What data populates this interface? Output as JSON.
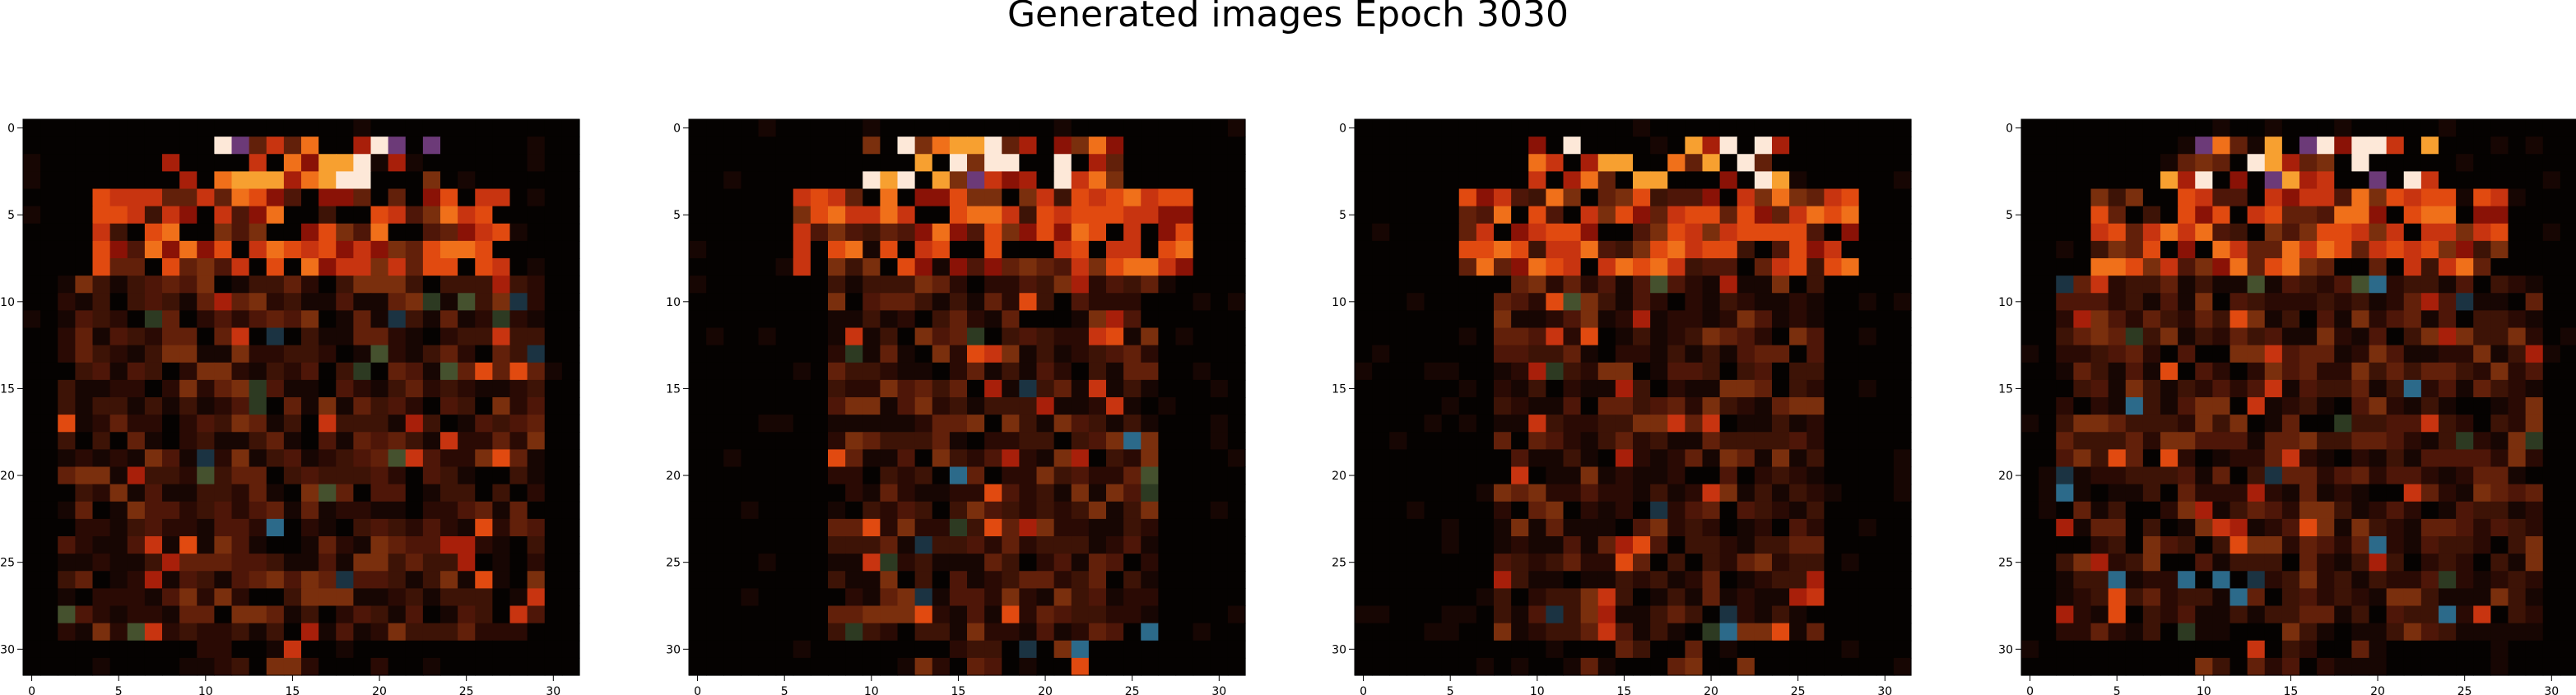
{
  "figure": {
    "title": "Generated images Epoch 3030"
  },
  "chart_data": [
    {
      "type": "heatmap",
      "title": "",
      "xlabel": "",
      "ylabel": "",
      "xlim": [
        -0.5,
        31.5
      ],
      "ylim": [
        31.5,
        -0.5
      ],
      "xticks": [
        0,
        5,
        10,
        15,
        20,
        25,
        30
      ],
      "yticks": [
        0,
        5,
        10,
        15,
        20,
        25,
        30
      ],
      "grid": false,
      "colors": {
        "background": "#050201",
        "palette": [
          "#050201",
          "#170603",
          "#2a0a04",
          "#3d1306",
          "#4e1608",
          "#62200a",
          "#7a2f0d",
          "#8a1206",
          "#a81f0a",
          "#c83410",
          "#e14a10",
          "#f0701a",
          "#f7a030",
          "#fde8d8",
          "#2d3a22",
          "#45512e",
          "#1b3342",
          "#2c6a8a",
          "#27407e",
          "#5f6fae",
          "#6c3a78",
          "#a9c8d8"
        ]
      },
      "pixels_note": ""
    },
    {
      "type": "heatmap",
      "title": "",
      "xlabel": "",
      "ylabel": "",
      "xlim": [
        -0.5,
        31.5
      ],
      "ylim": [
        31.5,
        -0.5
      ],
      "xticks": [
        0,
        5,
        10,
        15,
        20,
        25,
        30
      ],
      "yticks": [
        0,
        5,
        10,
        15,
        20,
        25,
        30
      ],
      "grid": false
    },
    {
      "type": "heatmap",
      "title": "",
      "xlabel": "",
      "ylabel": "",
      "xlim": [
        -0.5,
        31.5
      ],
      "ylim": [
        31.5,
        -0.5
      ],
      "xticks": [
        0,
        5,
        10,
        15,
        20,
        25,
        30
      ],
      "yticks": [
        0,
        5,
        10,
        15,
        20,
        25,
        30
      ],
      "grid": false
    },
    {
      "type": "heatmap",
      "title": "",
      "xlabel": "",
      "ylabel": "",
      "xlim": [
        -0.5,
        31.5
      ],
      "ylim": [
        31.5,
        -0.5
      ],
      "xticks": [
        0,
        5,
        10,
        15,
        20,
        25,
        30
      ],
      "yticks": [
        0,
        5,
        10,
        15,
        20,
        25,
        30
      ],
      "grid": false
    }
  ]
}
